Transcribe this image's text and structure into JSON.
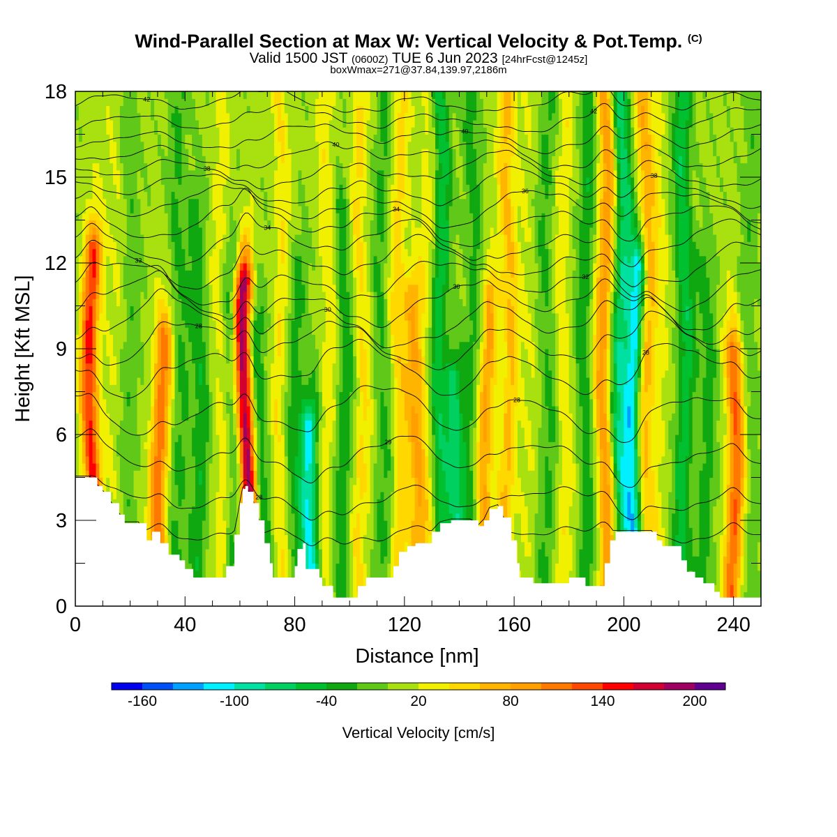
{
  "title": {
    "main": "Wind-Parallel Section at Max W: Vertical Velocity & Pot.Temp.",
    "copyright": "(C)",
    "valid_prefix": "Valid 1500 JST",
    "valid_utc": "(0600Z)",
    "valid_date": "TUE 6 Jun 2023",
    "forecast": "[24hrFcst@1245z]",
    "boxinfo": "boxWmax=271@37.84,139.97,2186m"
  },
  "colorbar": {
    "label": "Vertical Velocity [cm/s]",
    "tick_labels": [
      "-160",
      "-100",
      "-40",
      "20",
      "80",
      "140",
      "200"
    ],
    "bounds": [
      -180,
      -160,
      -140,
      -120,
      -100,
      -80,
      -60,
      -40,
      -20,
      0,
      20,
      40,
      60,
      80,
      100,
      120,
      140,
      160,
      180,
      200,
      220
    ],
    "colors": [
      "#0000ee",
      "#0050f5",
      "#00a0ff",
      "#00f0ff",
      "#00e0a0",
      "#00d060",
      "#00c030",
      "#10a810",
      "#60c818",
      "#a8e010",
      "#f0f000",
      "#ffd800",
      "#ffb400",
      "#ffa000",
      "#ff7800",
      "#ff4800",
      "#ff0000",
      "#d00030",
      "#a00060",
      "#600090"
    ]
  },
  "chart_data": {
    "type": "heatmap",
    "title": "Wind-Parallel Section at Max W: Vertical Velocity & Pot.Temp.",
    "xlabel": "Distance [nm]",
    "ylabel": "Height [Kft MSL]",
    "xlim": [
      0,
      250
    ],
    "ylim": [
      0,
      18
    ],
    "x_ticks": [
      0,
      40,
      80,
      120,
      160,
      200,
      240
    ],
    "y_ticks": [
      0,
      3,
      6,
      9,
      12,
      15,
      18
    ],
    "grid": false,
    "field": "Vertical Velocity [cm/s]",
    "background_w": 5,
    "columns": [
      {
        "x": 6,
        "w": 140,
        "top": 12.5
      },
      {
        "x": 14,
        "w": 15,
        "top": 18
      },
      {
        "x": 20,
        "w": -20,
        "top": 18
      },
      {
        "x": 31,
        "w": 110,
        "top": 9.5
      },
      {
        "x": 38,
        "w": -30,
        "top": 18
      },
      {
        "x": 45,
        "w": -40,
        "top": 14
      },
      {
        "x": 53,
        "w": 25,
        "top": 18
      },
      {
        "x": 58,
        "w": -45,
        "top": 12
      },
      {
        "x": 62,
        "w": 200,
        "top": 11.5
      },
      {
        "x": 67,
        "w": -50,
        "top": 10
      },
      {
        "x": 75,
        "w": 35,
        "top": 18
      },
      {
        "x": 80,
        "w": -35,
        "top": 12
      },
      {
        "x": 86,
        "w": -110,
        "top": 6.5
      },
      {
        "x": 92,
        "w": 30,
        "top": 18
      },
      {
        "x": 98,
        "w": -40,
        "top": 14
      },
      {
        "x": 104,
        "w": 40,
        "top": 18
      },
      {
        "x": 112,
        "w": -30,
        "top": 18
      },
      {
        "x": 118,
        "w": 45,
        "top": 18
      },
      {
        "x": 124,
        "w": 70,
        "top": 11
      },
      {
        "x": 128,
        "w": 25,
        "top": 18
      },
      {
        "x": 133,
        "w": -60,
        "top": 18
      },
      {
        "x": 139,
        "w": -75,
        "top": 8
      },
      {
        "x": 145,
        "w": -35,
        "top": 18
      },
      {
        "x": 150,
        "w": 80,
        "top": 11
      },
      {
        "x": 158,
        "w": 60,
        "top": 18
      },
      {
        "x": 165,
        "w": 15,
        "top": 18
      },
      {
        "x": 172,
        "w": -30,
        "top": 18
      },
      {
        "x": 178,
        "w": 30,
        "top": 18
      },
      {
        "x": 186,
        "w": -40,
        "top": 18
      },
      {
        "x": 193,
        "w": 90,
        "top": 18
      },
      {
        "x": 199,
        "w": -80,
        "top": 18
      },
      {
        "x": 204,
        "w": -120,
        "top": 12
      },
      {
        "x": 208,
        "w": 70,
        "top": 18
      },
      {
        "x": 213,
        "w": 20,
        "top": 18
      },
      {
        "x": 222,
        "w": -60,
        "top": 18
      },
      {
        "x": 230,
        "w": -35,
        "top": 12
      },
      {
        "x": 240,
        "w": 115,
        "top": 9
      },
      {
        "x": 246,
        "w": -20,
        "top": 18
      }
    ],
    "terrain": [
      [
        0,
        4.5
      ],
      [
        5,
        4.5
      ],
      [
        8,
        4.2
      ],
      [
        10,
        4
      ],
      [
        13,
        3.6
      ],
      [
        16,
        3.2
      ],
      [
        18,
        2.9
      ],
      [
        23,
        2.9
      ],
      [
        26,
        2.3
      ],
      [
        28,
        2.6
      ],
      [
        31,
        2.2
      ],
      [
        34,
        1.8
      ],
      [
        38,
        1.6
      ],
      [
        40,
        1.3
      ],
      [
        42,
        1.3
      ],
      [
        43,
        1
      ],
      [
        52,
        1
      ],
      [
        55,
        1.4
      ],
      [
        58,
        2.5
      ],
      [
        60,
        3.6
      ],
      [
        61,
        4.1
      ],
      [
        62,
        4.2
      ],
      [
        63,
        4
      ],
      [
        65,
        3.6
      ],
      [
        67,
        3
      ],
      [
        69,
        2.2
      ],
      [
        71,
        1.5
      ],
      [
        72,
        1
      ],
      [
        78,
        1
      ],
      [
        80,
        1.4
      ],
      [
        81,
        2
      ],
      [
        83,
        2.2
      ],
      [
        84,
        1.3
      ],
      [
        87,
        1.3
      ],
      [
        89,
        1
      ],
      [
        90,
        0.7
      ],
      [
        94,
        0.3
      ],
      [
        100,
        0.3
      ],
      [
        103,
        0.7
      ],
      [
        106,
        1
      ],
      [
        113,
        1
      ],
      [
        116,
        1.4
      ],
      [
        118,
        1.9
      ],
      [
        121,
        2.1
      ],
      [
        124,
        2.2
      ],
      [
        127,
        2.2
      ],
      [
        130,
        2.6
      ],
      [
        133,
        2.9
      ],
      [
        137,
        3
      ],
      [
        144,
        3
      ],
      [
        147,
        2.8
      ],
      [
        149,
        3
      ],
      [
        151,
        3.4
      ],
      [
        154,
        3.5
      ],
      [
        156,
        3.1
      ],
      [
        159,
        2.3
      ],
      [
        161,
        1.5
      ],
      [
        162,
        1
      ],
      [
        166,
        1
      ],
      [
        167,
        0.8
      ],
      [
        176,
        0.8
      ],
      [
        180,
        1
      ],
      [
        183,
        1
      ],
      [
        186,
        0.7
      ],
      [
        191,
        0.7
      ],
      [
        193,
        1.5
      ],
      [
        195,
        2.3
      ],
      [
        197,
        2.6
      ],
      [
        210,
        2.6
      ],
      [
        212,
        2.3
      ],
      [
        214,
        2.1
      ],
      [
        219,
        2.1
      ],
      [
        221,
        1.6
      ],
      [
        223,
        1.2
      ],
      [
        226,
        1
      ],
      [
        229,
        0.8
      ],
      [
        233,
        0.5
      ],
      [
        235,
        0.3
      ],
      [
        250,
        0.3
      ]
    ],
    "theta_contours": [
      {
        "z": 2.5,
        "amp": 0.15,
        "label": "26"
      },
      {
        "z": 3.7,
        "amp": 0.28,
        "label": "28"
      },
      {
        "z": 5.2,
        "amp": 0.42,
        "label": "29"
      },
      {
        "z": 6.8,
        "amp": 0.55,
        "label": "28"
      },
      {
        "z": 8.3,
        "amp": 0.62,
        "label": "28"
      },
      {
        "z": 9.2,
        "amp": 0.6,
        "label": "28"
      },
      {
        "z": 9.9,
        "amp": 0.58,
        "label": "30"
      },
      {
        "z": 10.6,
        "amp": 0.55,
        "label": "30"
      },
      {
        "z": 11.3,
        "amp": 0.52,
        "label": "32"
      },
      {
        "z": 12.0,
        "amp": 0.5,
        "label": "33"
      },
      {
        "z": 12.7,
        "amp": 0.48,
        "label": "34"
      },
      {
        "z": 13.4,
        "amp": 0.45,
        "label": "34"
      },
      {
        "z": 14.0,
        "amp": 0.42,
        "label": "36"
      },
      {
        "z": 14.6,
        "amp": 0.4,
        "label": "38"
      },
      {
        "z": 15.2,
        "amp": 0.38,
        "label": "38"
      },
      {
        "z": 15.8,
        "amp": 0.35,
        "label": "40"
      },
      {
        "z": 16.4,
        "amp": 0.32,
        "label": "40"
      },
      {
        "z": 17.0,
        "amp": 0.3,
        "label": "42"
      },
      {
        "z": 17.6,
        "amp": 0.28,
        "label": "42"
      }
    ]
  }
}
